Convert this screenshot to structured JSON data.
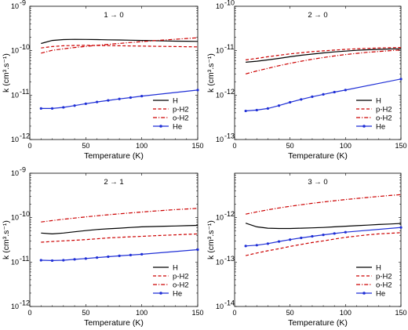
{
  "chart_data": [
    {
      "type": "line",
      "title": "1 → 0",
      "xlabel": "Temperature (K)",
      "ylabel": "k (cm³.s⁻¹)",
      "log_y": true,
      "xlim": [
        0,
        150
      ],
      "ylim": [
        1e-12,
        1e-09
      ],
      "xticks": [
        0,
        50,
        100,
        150
      ],
      "yticks": [
        1e-12,
        1e-11,
        1e-10,
        1e-09
      ],
      "ytick_labels": [
        [
          "10",
          "-12"
        ],
        [
          "10",
          "-11"
        ],
        [
          "10",
          "-10"
        ],
        [
          "10",
          "-9"
        ]
      ],
      "legend": "inside lower right",
      "series": [
        {
          "name": "H",
          "x": [
            10,
            20,
            30,
            40,
            50,
            60,
            70,
            80,
            90,
            100,
            110,
            120,
            130,
            140,
            150
          ],
          "y": [
            1.45e-10,
            1.7e-10,
            1.78e-10,
            1.8e-10,
            1.79e-10,
            1.78e-10,
            1.76e-10,
            1.74e-10,
            1.72e-10,
            1.7e-10,
            1.68e-10,
            1.66e-10,
            1.64e-10,
            1.63e-10,
            1.62e-10
          ]
        },
        {
          "name": "p-H2",
          "x": [
            10,
            20,
            30,
            40,
            50,
            60,
            70,
            80,
            90,
            100,
            110,
            120,
            130,
            140,
            150
          ],
          "y": [
            1.15e-10,
            1.24e-10,
            1.29e-10,
            1.31e-10,
            1.32e-10,
            1.31e-10,
            1.3e-10,
            1.29e-10,
            1.28e-10,
            1.27e-10,
            1.26e-10,
            1.25e-10,
            1.24e-10,
            1.23e-10,
            1.22e-10
          ]
        },
        {
          "name": "o-H2",
          "x": [
            10,
            20,
            30,
            40,
            50,
            60,
            70,
            80,
            90,
            100,
            110,
            120,
            130,
            140,
            150
          ],
          "y": [
            8.8e-11,
            1.02e-10,
            1.1e-10,
            1.18e-10,
            1.25e-10,
            1.32e-10,
            1.39e-10,
            1.46e-10,
            1.53e-10,
            1.6e-10,
            1.67e-10,
            1.74e-10,
            1.81e-10,
            1.88e-10,
            1.95e-10
          ]
        },
        {
          "name": "He",
          "x": [
            10,
            20,
            30,
            40,
            50,
            60,
            70,
            80,
            90,
            100,
            150
          ],
          "y": [
            5e-12,
            5e-12,
            5.3e-12,
            5.8e-12,
            6.4e-12,
            7e-12,
            7.6e-12,
            8.2e-12,
            8.8e-12,
            9.5e-12,
            1.3e-11
          ]
        }
      ]
    },
    {
      "type": "line",
      "title": "2 → 0",
      "xlabel": "Temperature (K)",
      "ylabel": "k (cm³.s⁻¹)",
      "log_y": true,
      "xlim": [
        0,
        150
      ],
      "ylim": [
        1e-13,
        1e-10
      ],
      "xticks": [
        0,
        50,
        100,
        150
      ],
      "yticks": [
        1e-13,
        1e-12,
        1e-11,
        1e-10
      ],
      "ytick_labels": [
        [
          "10",
          "-13"
        ],
        [
          "10",
          "-12"
        ],
        [
          "10",
          "-11"
        ],
        [
          "10",
          "-10"
        ]
      ],
      "legend": "inside lower right",
      "series": [
        {
          "name": "H",
          "x": [
            10,
            20,
            30,
            40,
            50,
            60,
            70,
            80,
            90,
            100,
            110,
            120,
            130,
            140,
            150
          ],
          "y": [
            5.5e-12,
            5.8e-12,
            6.2e-12,
            6.7e-12,
            7.3e-12,
            7.9e-12,
            8.4e-12,
            8.9e-12,
            9.4e-12,
            9.8e-12,
            1.02e-11,
            1.05e-11,
            1.07e-11,
            1.09e-11,
            1.1e-11
          ]
        },
        {
          "name": "p-H2",
          "x": [
            10,
            20,
            30,
            40,
            50,
            60,
            70,
            80,
            90,
            100,
            110,
            120,
            130,
            140,
            150
          ],
          "y": [
            6.2e-12,
            6.7e-12,
            7.3e-12,
            7.9e-12,
            8.5e-12,
            9e-12,
            9.5e-12,
            9.9e-12,
            1.03e-11,
            1.07e-11,
            1.1e-11,
            1.13e-11,
            1.15e-11,
            1.17e-11,
            1.18e-11
          ]
        },
        {
          "name": "o-H2",
          "x": [
            10,
            20,
            30,
            40,
            50,
            60,
            70,
            80,
            90,
            100,
            110,
            120,
            130,
            140,
            150
          ],
          "y": [
            3e-12,
            3.5e-12,
            4e-12,
            4.6e-12,
            5.2e-12,
            5.8e-12,
            6.4e-12,
            7e-12,
            7.6e-12,
            8.2e-12,
            8.7e-12,
            9.2e-12,
            9.6e-12,
            1e-11,
            1.04e-11
          ]
        },
        {
          "name": "He",
          "x": [
            10,
            20,
            30,
            40,
            50,
            60,
            70,
            80,
            90,
            100,
            150
          ],
          "y": [
            4.4e-13,
            4.6e-13,
            5e-13,
            5.8e-13,
            6.9e-13,
            8e-13,
            9.2e-13,
            1.04e-12,
            1.17e-12,
            1.3e-12,
            2.3e-12
          ]
        }
      ]
    },
    {
      "type": "line",
      "title": "2 → 1",
      "xlabel": "Temperature (K)",
      "ylabel": "k (cm³.s⁻¹)",
      "log_y": true,
      "xlim": [
        0,
        150
      ],
      "ylim": [
        1e-12,
        1e-09
      ],
      "xticks": [
        0,
        50,
        100,
        150
      ],
      "yticks": [
        1e-12,
        1e-11,
        1e-10,
        1e-09
      ],
      "ytick_labels": [
        [
          "10",
          "-12"
        ],
        [
          "10",
          "-11"
        ],
        [
          "10",
          "-10"
        ],
        [
          "10",
          "-9"
        ]
      ],
      "legend": "inside lower right",
      "series": [
        {
          "name": "H",
          "x": [
            10,
            20,
            30,
            40,
            50,
            60,
            70,
            80,
            90,
            100,
            110,
            120,
            130,
            140,
            150
          ],
          "y": [
            4.5e-11,
            4.3e-11,
            4.5e-11,
            4.8e-11,
            5.1e-11,
            5.4e-11,
            5.6e-11,
            5.8e-11,
            6e-11,
            6.2e-11,
            6.3e-11,
            6.4e-11,
            6.5e-11,
            6.6e-11,
            6.7e-11
          ]
        },
        {
          "name": "p-H2",
          "x": [
            10,
            20,
            30,
            40,
            50,
            60,
            70,
            80,
            90,
            100,
            110,
            120,
            130,
            140,
            150
          ],
          "y": [
            2.8e-11,
            2.9e-11,
            3e-11,
            3.1e-11,
            3.2e-11,
            3.35e-11,
            3.5e-11,
            3.6e-11,
            3.7e-11,
            3.8e-11,
            3.9e-11,
            4e-11,
            4.1e-11,
            4.2e-11,
            4.3e-11
          ]
        },
        {
          "name": "o-H2",
          "x": [
            10,
            20,
            30,
            40,
            50,
            60,
            70,
            80,
            90,
            100,
            110,
            120,
            130,
            140,
            150
          ],
          "y": [
            8e-11,
            8.6e-11,
            9.2e-11,
            9.8e-11,
            1.04e-10,
            1.1e-10,
            1.16e-10,
            1.22e-10,
            1.28e-10,
            1.34e-10,
            1.4e-10,
            1.46e-10,
            1.52e-10,
            1.57e-10,
            1.62e-10
          ]
        },
        {
          "name": "He",
          "x": [
            10,
            20,
            30,
            40,
            50,
            60,
            70,
            80,
            90,
            100,
            150
          ],
          "y": [
            1.1e-11,
            1.08e-11,
            1.1e-11,
            1.15e-11,
            1.2e-11,
            1.26e-11,
            1.32e-11,
            1.38e-11,
            1.44e-11,
            1.5e-11,
            1.9e-11
          ]
        }
      ]
    },
    {
      "type": "line",
      "title": "3 → 0",
      "xlabel": "Temperature (K)",
      "ylabel": "k (cm³.s⁻¹)",
      "log_y": true,
      "xlim": [
        0,
        150
      ],
      "ylim": [
        1e-14,
        1e-11
      ],
      "xticks": [
        0,
        50,
        100,
        150
      ],
      "yticks": [
        1e-14,
        1e-13,
        1e-12
      ],
      "ytick_labels": [
        [
          "10",
          "-14"
        ],
        [
          "10",
          "-13"
        ],
        [
          "10",
          "-12"
        ]
      ],
      "legend": "inside lower right",
      "series": [
        {
          "name": "H",
          "x": [
            10,
            20,
            30,
            40,
            50,
            60,
            70,
            80,
            90,
            100,
            110,
            120,
            130,
            140,
            150
          ],
          "y": [
            7.5e-13,
            6.2e-13,
            5.8e-13,
            5.7e-13,
            5.7e-13,
            5.8e-13,
            5.9e-13,
            6e-13,
            6.2e-13,
            6.4e-13,
            6.6e-13,
            6.8e-13,
            7e-13,
            7.2e-13,
            7.4e-13
          ]
        },
        {
          "name": "p-H2",
          "x": [
            10,
            20,
            30,
            40,
            50,
            60,
            70,
            80,
            90,
            100,
            110,
            120,
            130,
            140,
            150
          ],
          "y": [
            1.4e-13,
            1.6e-13,
            1.8e-13,
            2e-13,
            2.25e-13,
            2.5e-13,
            2.75e-13,
            3e-13,
            3.3e-13,
            3.6e-13,
            3.85e-13,
            4.1e-13,
            4.3e-13,
            4.45e-13,
            4.6e-13
          ]
        },
        {
          "name": "o-H2",
          "x": [
            10,
            20,
            30,
            40,
            50,
            60,
            70,
            80,
            90,
            100,
            110,
            120,
            130,
            140,
            150
          ],
          "y": [
            1.2e-12,
            1.35e-12,
            1.5e-12,
            1.65e-12,
            1.8e-12,
            1.95e-12,
            2.1e-12,
            2.25e-12,
            2.4e-12,
            2.55e-12,
            2.7e-12,
            2.85e-12,
            3e-12,
            3.15e-12,
            3.3e-12
          ]
        },
        {
          "name": "He",
          "x": [
            10,
            20,
            30,
            40,
            50,
            60,
            70,
            80,
            90,
            100,
            150
          ],
          "y": [
            2.3e-13,
            2.4e-13,
            2.6e-13,
            2.9e-13,
            3.2e-13,
            3.5e-13,
            3.8e-13,
            4.1e-13,
            4.4e-13,
            4.7e-13,
            6e-13
          ]
        }
      ]
    }
  ],
  "legend_labels": [
    "H",
    "p-H2",
    "o-H2",
    "He"
  ],
  "colors": {
    "H": "#000000",
    "p-H2": "#cc0000",
    "o-H2": "#cc0000",
    "He": "#1f2fd6",
    "axis": "#000000",
    "background": "#ffffff"
  },
  "line_styles": {
    "H": "solid",
    "p-H2": "dashed",
    "o-H2": "dash-dot",
    "He": "solid-with-dot-markers"
  }
}
